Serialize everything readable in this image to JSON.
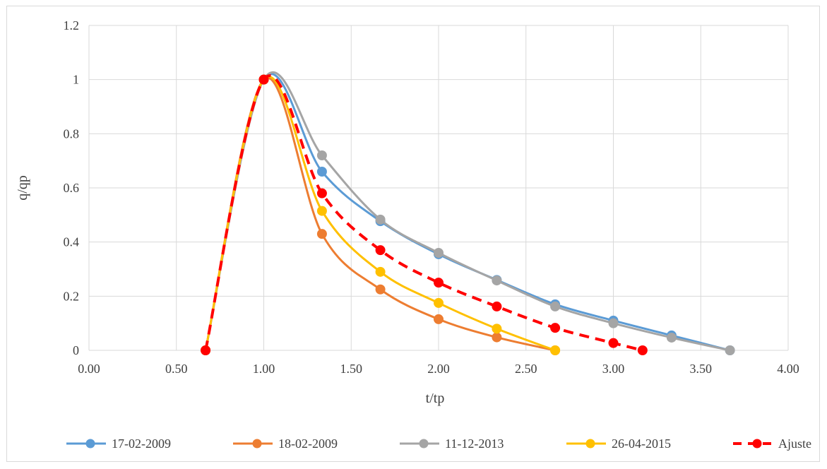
{
  "chart_data": {
    "type": "line",
    "xlabel": "t/tp",
    "ylabel": "q/qp",
    "xlim": [
      0,
      4
    ],
    "ylim": [
      0,
      1.2
    ],
    "xticks": [
      "0.00",
      "0.50",
      "1.00",
      "1.50",
      "2.00",
      "2.50",
      "3.00",
      "3.50",
      "4.00"
    ],
    "yticks": [
      "0",
      "0.2",
      "0.4",
      "0.6",
      "0.8",
      "1",
      "1.2"
    ],
    "grid": true,
    "legend_position": "bottom",
    "series": [
      {
        "name": "17-02-2009",
        "color": "#5b9bd5",
        "dashed": false,
        "x": [
          0.667,
          1.0,
          1.333,
          1.667,
          2.0,
          2.333,
          2.667,
          3.0,
          3.333,
          3.667
        ],
        "y": [
          0,
          1,
          0.66,
          0.477,
          0.355,
          0.26,
          0.17,
          0.11,
          0.055,
          0
        ]
      },
      {
        "name": "18-02-2009",
        "color": "#ed7d31",
        "dashed": false,
        "x": [
          0.667,
          1.0,
          1.333,
          1.667,
          2.0,
          2.333,
          2.667
        ],
        "y": [
          0,
          1,
          0.43,
          0.225,
          0.115,
          0.048,
          0
        ]
      },
      {
        "name": "11-12-2013",
        "color": "#a5a5a5",
        "dashed": false,
        "x": [
          0.667,
          1.0,
          1.333,
          1.667,
          2.0,
          2.333,
          2.667,
          3.0,
          3.333,
          3.667
        ],
        "y": [
          0,
          1,
          0.72,
          0.483,
          0.36,
          0.258,
          0.162,
          0.1,
          0.047,
          0
        ]
      },
      {
        "name": "26-04-2015",
        "color": "#ffc000",
        "dashed": false,
        "x": [
          0.667,
          1.0,
          1.333,
          1.667,
          2.0,
          2.333,
          2.667
        ],
        "y": [
          0,
          1,
          0.515,
          0.29,
          0.175,
          0.08,
          0
        ]
      },
      {
        "name": "Ajuste",
        "color": "#ff0000",
        "dashed": true,
        "x": [
          0.667,
          1.0,
          1.333,
          1.667,
          2.0,
          2.333,
          2.667,
          3.0,
          3.167
        ],
        "y": [
          0,
          1,
          0.58,
          0.37,
          0.25,
          0.162,
          0.083,
          0.027,
          0
        ]
      }
    ]
  }
}
